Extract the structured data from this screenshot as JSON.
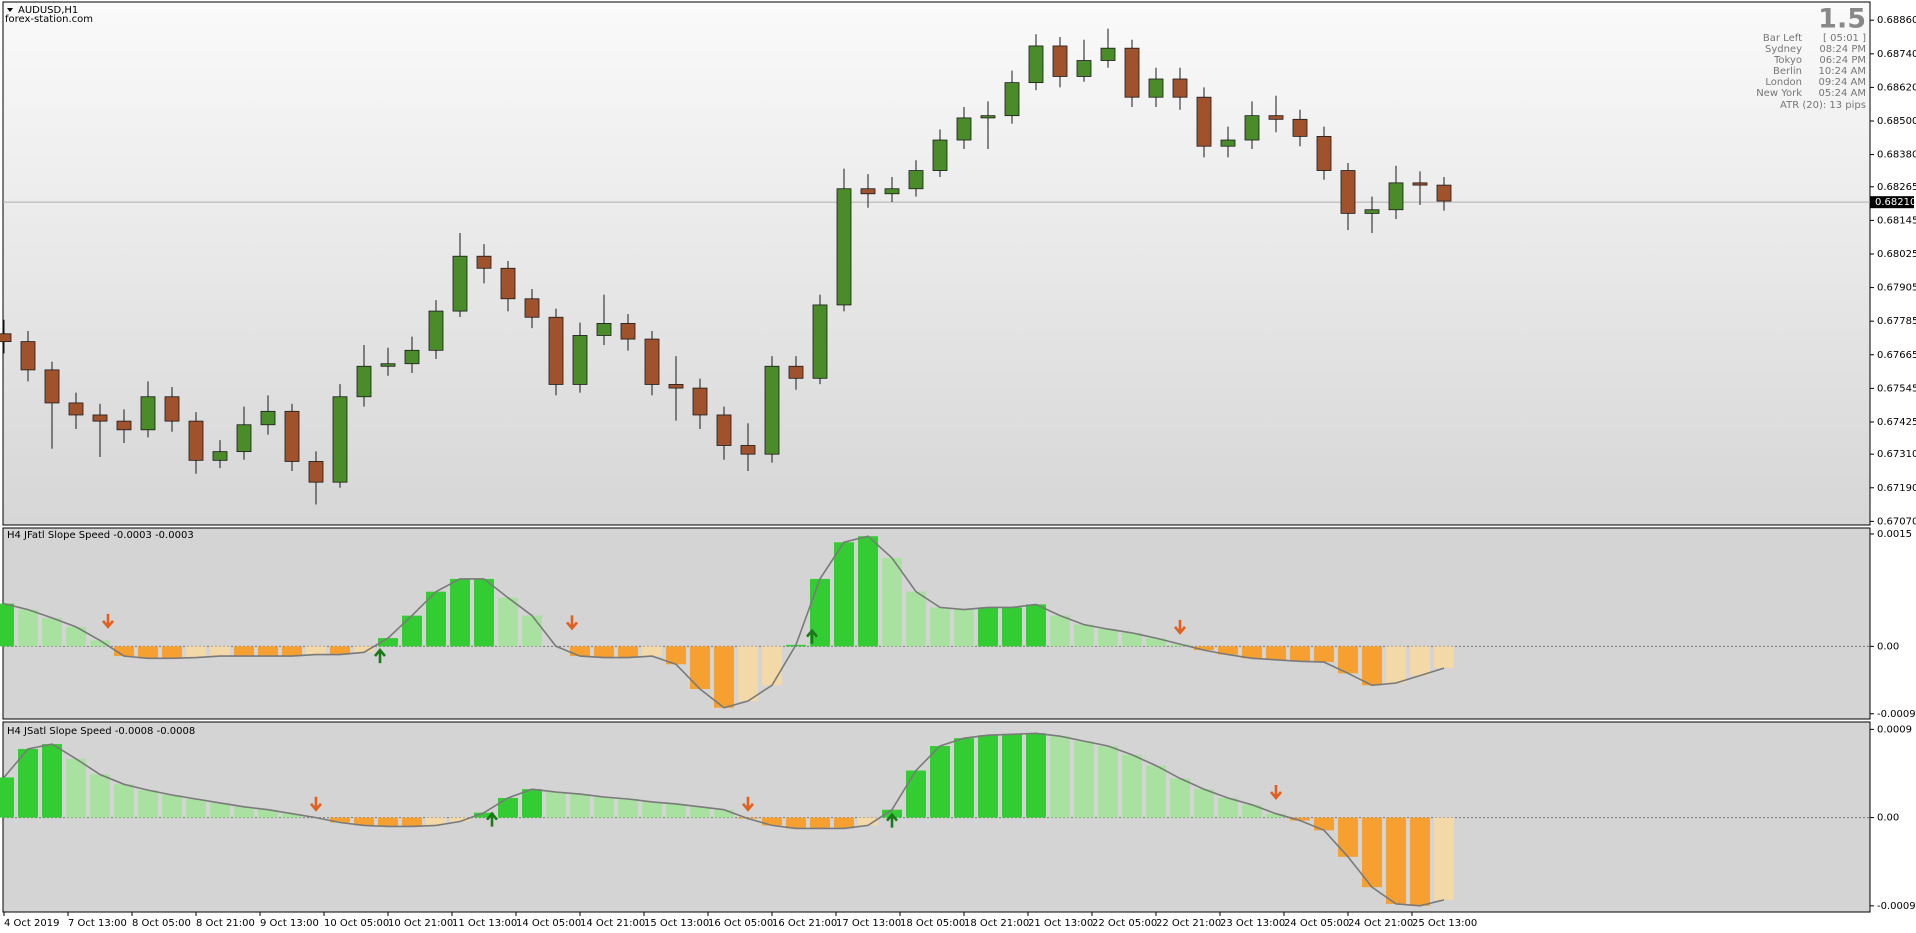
{
  "chart_data": [
    {
      "type": "candlestick",
      "title": "AUDUSD,H1",
      "subtitle": "forex-station.com",
      "info": {
        "spread": 1.5,
        "rows": [
          [
            "Bar Left",
            "[ 05:01 ]"
          ],
          [
            "Sydney",
            "08:24 PM"
          ],
          [
            "Tokyo",
            "06:24 PM"
          ],
          [
            "Berlin",
            "10:24 AM"
          ],
          [
            "London",
            "09:24 AM"
          ],
          [
            "New York",
            "05:24 AM"
          ]
        ],
        "atr": "ATR (20): 13 pips"
      },
      "x": [
        0,
        6,
        12,
        18,
        24,
        30,
        36,
        42,
        48,
        54,
        60,
        66,
        72,
        78,
        84,
        90,
        96,
        102,
        108,
        114,
        120,
        126,
        132,
        138,
        144,
        150,
        156,
        162,
        168,
        174,
        180,
        186,
        192,
        198,
        204,
        210,
        216,
        222,
        228,
        234,
        240,
        246,
        252,
        258,
        264,
        270,
        276,
        282,
        288,
        294,
        300,
        306,
        312,
        318,
        324,
        330,
        336,
        342,
        348,
        354,
        360
      ],
      "open": [
        0.6774,
        0.67712,
        0.67611,
        0.67493,
        0.6745,
        0.67428,
        0.67397,
        0.67515,
        0.67428,
        0.67288,
        0.67319,
        0.67415,
        0.67463,
        0.67284,
        0.6721,
        0.67515,
        0.67624,
        0.67633,
        0.67681,
        0.67821,
        0.68017,
        0.67974,
        0.67865,
        0.67799,
        0.67559,
        0.67734,
        0.67777,
        0.67721,
        0.67559,
        0.67546,
        0.6745,
        0.67341,
        0.6731,
        0.67624,
        0.67581,
        0.67843,
        0.68258,
        0.6824,
        0.68258,
        0.68323,
        0.68432,
        0.68511,
        0.68519,
        0.68637,
        0.68768,
        0.68659,
        0.68716,
        0.6876,
        0.68585,
        0.6865,
        0.68585,
        0.6841,
        0.68432,
        0.68519,
        0.68506,
        0.68445,
        0.68323,
        0.6817,
        0.68183,
        0.68279,
        0.68271
      ],
      "high": [
        0.6779,
        0.6775,
        0.6764,
        0.6753,
        0.6749,
        0.6747,
        0.6757,
        0.6755,
        0.6746,
        0.6736,
        0.6748,
        0.6752,
        0.6749,
        0.6732,
        0.6756,
        0.677,
        0.6769,
        0.6773,
        0.6786,
        0.681,
        0.6806,
        0.68,
        0.679,
        0.6783,
        0.6778,
        0.6788,
        0.6781,
        0.6775,
        0.6766,
        0.6758,
        0.6748,
        0.6742,
        0.6766,
        0.6766,
        0.6788,
        0.6833,
        0.6831,
        0.683,
        0.6836,
        0.6847,
        0.6855,
        0.6857,
        0.6868,
        0.6881,
        0.688,
        0.6879,
        0.6883,
        0.6879,
        0.6869,
        0.6869,
        0.6862,
        0.6848,
        0.6857,
        0.6859,
        0.6854,
        0.6848,
        0.6835,
        0.6823,
        0.6834,
        0.6832,
        0.683
      ],
      "low": [
        0.6767,
        0.6757,
        0.6733,
        0.674,
        0.673,
        0.6735,
        0.6737,
        0.6739,
        0.6724,
        0.6726,
        0.6729,
        0.6738,
        0.6725,
        0.6713,
        0.6719,
        0.6748,
        0.6759,
        0.676,
        0.6765,
        0.678,
        0.6792,
        0.6782,
        0.6776,
        0.6752,
        0.6753,
        0.677,
        0.6768,
        0.6752,
        0.6743,
        0.674,
        0.6729,
        0.6725,
        0.6728,
        0.6754,
        0.6756,
        0.6782,
        0.6819,
        0.6821,
        0.6823,
        0.683,
        0.684,
        0.684,
        0.6849,
        0.6861,
        0.6862,
        0.6864,
        0.6869,
        0.6855,
        0.6855,
        0.6854,
        0.6837,
        0.6837,
        0.684,
        0.6846,
        0.6841,
        0.6829,
        0.6811,
        0.681,
        0.6815,
        0.682,
        0.6818
      ],
      "close": [
        0.67712,
        0.67611,
        0.67493,
        0.6745,
        0.67428,
        0.67397,
        0.67515,
        0.67428,
        0.67288,
        0.67319,
        0.67415,
        0.67463,
        0.67284,
        0.6721,
        0.67515,
        0.67624,
        0.67633,
        0.67681,
        0.67821,
        0.68017,
        0.67974,
        0.67865,
        0.67799,
        0.67559,
        0.67734,
        0.67777,
        0.67721,
        0.67559,
        0.67546,
        0.6745,
        0.67341,
        0.6731,
        0.67624,
        0.67581,
        0.67843,
        0.68258,
        0.6824,
        0.68258,
        0.68323,
        0.68432,
        0.68511,
        0.68519,
        0.68637,
        0.68768,
        0.68659,
        0.68716,
        0.6876,
        0.68585,
        0.6865,
        0.68585,
        0.6841,
        0.68432,
        0.68519,
        0.68506,
        0.68445,
        0.68323,
        0.6817,
        0.68183,
        0.68279,
        0.68271,
        0.68214
      ],
      "up_color": "#4a8c2a",
      "down_color": "#a0522d",
      "wick_color": "#1a1a1a",
      "last_price": {
        "value": 0.6821,
        "label": "0.68210"
      },
      "xlim": [
        -0.25,
        466.5
      ],
      "xticks": [
        {
          "value": 0,
          "label": "4 Oct 2019"
        },
        {
          "value": 16,
          "label": "7 Oct 13:00"
        },
        {
          "value": 32,
          "label": "8 Oct 05:00"
        },
        {
          "value": 48,
          "label": "8 Oct 21:00"
        },
        {
          "value": 64,
          "label": "9 Oct 13:00"
        },
        {
          "value": 80,
          "label": "10 Oct 05:00"
        },
        {
          "value": 96,
          "label": "10 Oct 21:00"
        },
        {
          "value": 112,
          "label": "11 Oct 13:00"
        },
        {
          "value": 128,
          "label": "14 Oct 05:00"
        },
        {
          "value": 144,
          "label": "14 Oct 21:00"
        },
        {
          "value": 160,
          "label": "15 Oct 13:00"
        },
        {
          "value": 176,
          "label": "16 Oct 05:00"
        },
        {
          "value": 192,
          "label": "16 Oct 21:00"
        },
        {
          "value": 208,
          "label": "17 Oct 13:00"
        },
        {
          "value": 224,
          "label": "18 Oct 05:00"
        },
        {
          "value": 240,
          "label": "18 Oct 21:00"
        },
        {
          "value": 256,
          "label": "21 Oct 13:00"
        },
        {
          "value": 272,
          "label": "22 Oct 05:00"
        },
        {
          "value": 288,
          "label": "22 Oct 21:00"
        },
        {
          "value": 304,
          "label": "23 Oct 13:00"
        },
        {
          "value": 320,
          "label": "24 Oct 05:00"
        },
        {
          "value": 336,
          "label": "24 Oct 21:00"
        },
        {
          "value": 352,
          "label": "25 Oct 13:00"
        }
      ],
      "ylim": [
        0.67057,
        0.68925
      ],
      "yticks": [
        {
          "value": 0.6886,
          "label": "0.68860"
        },
        {
          "value": 0.6874,
          "label": "0.68740"
        },
        {
          "value": 0.6862,
          "label": "0.68620"
        },
        {
          "value": 0.685,
          "label": "0.68500"
        },
        {
          "value": 0.6838,
          "label": "0.68380"
        },
        {
          "value": 0.68265,
          "label": "0.68265"
        },
        {
          "value": 0.68145,
          "label": "0.68145"
        },
        {
          "value": 0.68025,
          "label": "0.68025"
        },
        {
          "value": 0.67905,
          "label": "0.67905"
        },
        {
          "value": 0.67785,
          "label": "0.67785"
        },
        {
          "value": 0.67665,
          "label": "0.67665"
        },
        {
          "value": 0.67545,
          "label": "0.67545"
        },
        {
          "value": 0.67425,
          "label": "0.67425"
        },
        {
          "value": 0.6731,
          "label": "0.67310"
        },
        {
          "value": 0.6719,
          "label": "0.67190"
        },
        {
          "value": 0.6707,
          "label": "0.67070"
        }
      ]
    },
    {
      "type": "histogram",
      "title": "H4 JFatl Slope Speed -0.0003 -0.0003",
      "values": [
        0.00057,
        0.00049,
        0.00038,
        0.00026,
        8e-05,
        -0.00013,
        -0.00016,
        -0.00016,
        -0.00015,
        -0.00013,
        -0.00013,
        -0.00013,
        -0.00013,
        -0.00011,
        -0.00011,
        -8e-05,
        0.00011,
        0.00041,
        0.00073,
        0.0009,
        0.0009,
        0.00065,
        0.00041,
        0.0,
        -0.00013,
        -0.00015,
        -0.00015,
        -0.00013,
        -0.00024,
        -0.00057,
        -0.00082,
        -0.00073,
        -0.00052,
        2e-05,
        0.0009,
        0.00139,
        0.00147,
        0.00118,
        0.00073,
        0.00052,
        0.00049,
        0.00052,
        0.00052,
        0.00056,
        0.00041,
        0.00029,
        0.00023,
        0.00018,
        0.00011,
        3e-05,
        -5e-05,
        -0.00011,
        -0.00016,
        -0.00018,
        -0.0002,
        -0.00021,
        -0.00036,
        -0.00052,
        -0.00049,
        -0.00039,
        -0.00029
      ],
      "colors": [
        "#33cc33",
        "#a9e2a0",
        "#f5a030",
        "#f3d8a8"
      ],
      "line_color": "#7a7a7a",
      "down_arrows": {
        "x": [
          26,
          142,
          294
        ],
        "y": [
          0.00026,
          0.00024,
          0.00018
        ],
        "color": "#e06020"
      },
      "up_arrows": {
        "x": [
          94,
          202
        ],
        "y": [
          -5e-05,
          0.00021
        ],
        "color": "#1a7a1a"
      },
      "ylim": [
        -0.00097,
        0.00158
      ],
      "yticks": [
        0.0015,
        {
          "value": 0,
          "label": "0.00"
        },
        -0.0009
      ]
    },
    {
      "type": "histogram",
      "title": "H4 JSatl Slope Speed -0.0008 -0.0008",
      "values": [
        0.00041,
        0.0007,
        0.00075,
        0.0006,
        0.00044,
        0.00034,
        0.00028,
        0.00023,
        0.00019,
        0.00015,
        0.00011,
        8e-05,
        4e-05,
        0.0,
        -5e-05,
        -8e-05,
        -9e-05,
        -9e-05,
        -8e-05,
        -4e-05,
        5e-05,
        0.0002,
        0.00029,
        0.00026,
        0.00024,
        0.00021,
        0.00019,
        0.00016,
        0.00014,
        0.00011,
        8e-05,
        -1e-05,
        -8e-05,
        -0.00011,
        -0.00011,
        -0.00011,
        -8e-05,
        8e-05,
        0.00048,
        0.00073,
        0.00081,
        0.00084,
        0.00085,
        0.00086,
        0.00083,
        0.00078,
        0.00073,
        0.00064,
        0.00053,
        0.0004,
        0.00029,
        0.0002,
        0.00013,
        4e-05,
        -3e-05,
        -0.00013,
        -0.0004,
        -0.00071,
        -0.00088,
        -0.0009,
        -0.00084
      ],
      "colors": [
        "#33cc33",
        "#a9e2a0",
        "#f5a030",
        "#f3d8a8"
      ],
      "line_color": "#7a7a7a",
      "down_arrows": {
        "x": [
          78,
          186,
          318
        ],
        "y": [
          8e-05,
          8e-05,
          0.0002
        ],
        "color": "#e06020"
      },
      "up_arrows": {
        "x": [
          122,
          222
        ],
        "y": [
          4e-05,
          3e-05
        ],
        "color": "#1a7a1a"
      },
      "ylim": [
        -0.000963,
        0.000975
      ],
      "yticks": [
        0.0009,
        {
          "value": 0,
          "label": "0.00"
        },
        -0.0009
      ]
    }
  ]
}
